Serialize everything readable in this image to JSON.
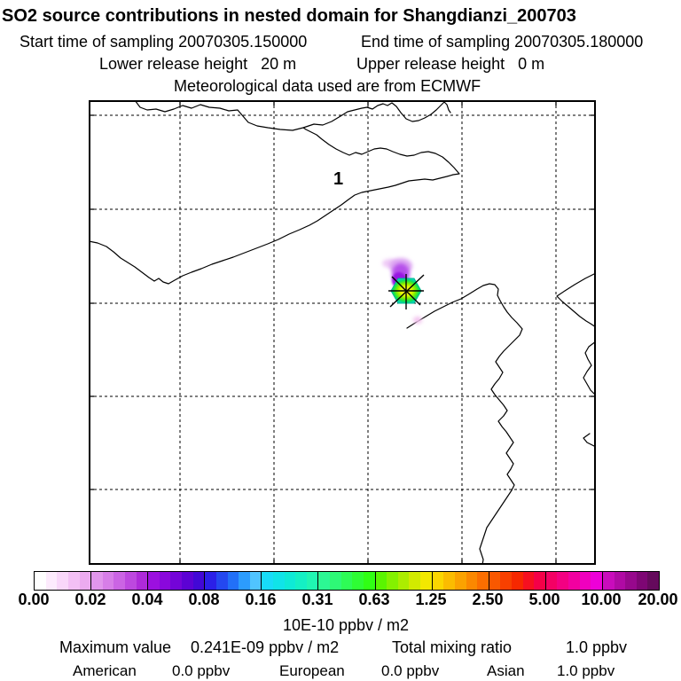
{
  "header": {
    "title": "SO2 source contributions in nested domain for Shangdianzi_200703",
    "start_time_label": "Start time of sampling",
    "start_time_value": "20070305.150000",
    "end_time_label": "End time of sampling",
    "end_time_value": "20070305.180000",
    "lower_release_label": "Lower release height",
    "lower_release_value": "20 m",
    "upper_release_label": "Upper release height",
    "upper_release_value": "0 m",
    "met_data": "Meteorological data used are from ECMWF"
  },
  "map": {
    "station_number": "1",
    "source_marker": "asterisk marker on colored source cell near plume"
  },
  "colorbar": {
    "type": "discrete-colormap",
    "unit_label": "10E-10 ppbv / m2",
    "tick_labels": [
      "0.00",
      "0.02",
      "0.04",
      "0.08",
      "0.16",
      "0.31",
      "0.63",
      "1.25",
      "2.50",
      "5.00",
      "10.00",
      "20.00"
    ],
    "segments": [
      [
        "#ffffff",
        "#fdebfd",
        "#f9d7fa",
        "#f3c0f5",
        "#ecabf0"
      ],
      [
        "#e196ec",
        "#d77ee8",
        "#cb64e4",
        "#bd48df",
        "#ae2ad9"
      ],
      [
        "#9c10df",
        "#8a08dc",
        "#7404d8",
        "#5c02d4",
        "#4208d6"
      ],
      [
        "#2b20e8",
        "#2448f0",
        "#2270f8",
        "#2c9cfe",
        "#50c4ff"
      ],
      [
        "#18dcf8",
        "#10e4e8",
        "#0eead6",
        "#14f0c4",
        "#20f5b2"
      ],
      [
        "#2cf794",
        "#2ef976",
        "#2efb56",
        "#2efd34",
        "#30ff14"
      ],
      [
        "#5af500",
        "#84f100",
        "#aced00",
        "#d2ea00",
        "#f2e800"
      ],
      [
        "#fbd600",
        "#fbbc00",
        "#fba200",
        "#fb8800",
        "#fb6e00"
      ],
      [
        "#f95800",
        "#f84000",
        "#f72800",
        "#f61020",
        "#f50048"
      ],
      [
        "#f40064",
        "#f30082",
        "#f200a0",
        "#f000be",
        "#ee00d8"
      ],
      [
        "#c90cbc",
        "#b00aa4",
        "#97088c",
        "#7e0674",
        "#650a5c"
      ]
    ]
  },
  "stats": {
    "maximum_value_label": "Maximum value",
    "maximum_value": "0.241E-09 ppbv / m2",
    "total_mixing_ratio_label": "Total mixing ratio",
    "total_mixing_ratio_value": "1.0 ppbv",
    "regions": [
      {
        "name": "American",
        "value": "0.0 ppbv"
      },
      {
        "name": "European",
        "value": "0.0 ppbv"
      },
      {
        "name": "Asian",
        "value": "1.0 ppbv"
      }
    ]
  }
}
